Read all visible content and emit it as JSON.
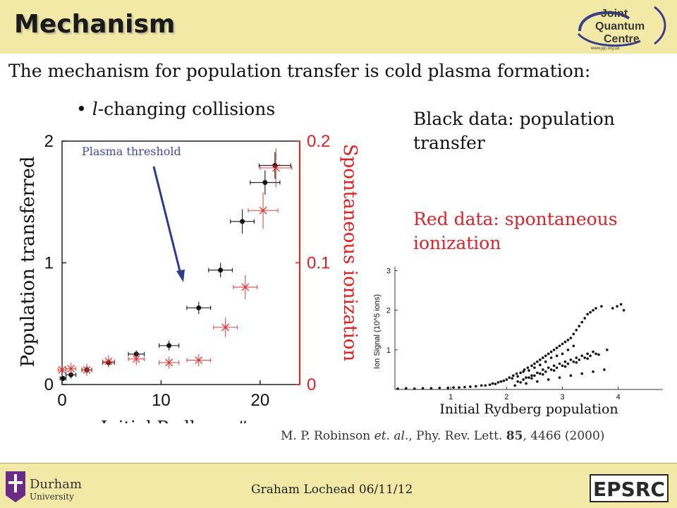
{
  "slide": {
    "title": "Mechanism",
    "intro": "The mechanism for population transfer is cold plasma formation:",
    "bullet_prefix": "l",
    "bullet_rest": "-changing collisions",
    "black_note": "Black data: population transfer",
    "red_note": "Red data: spontaneous ionization",
    "ref_pre": "M. P. Robinson ",
    "ref_etal": "et. al.",
    "ref_mid": ", Phy. Rev. Lett. ",
    "ref_vol": "85",
    "ref_post": ", 4466 (2000)",
    "footer": "Graham Lochead 06/11/12",
    "logos": {
      "jqc_line1": "Joint",
      "jqc_line2": "Quantum",
      "jqc_line3": "Centre",
      "jqc_url": "www.jqc.org.uk",
      "durham_line1": "Durham",
      "durham_line2": "University",
      "epsrc": "EPSRC"
    },
    "colors": {
      "band": "#f2e9a6",
      "black_series": "#111111",
      "red_series": "#e02020",
      "arrow": "#2e3a8c"
    }
  },
  "chart_data": [
    {
      "type": "scatter",
      "title": "",
      "xlabel": "Initial Rydberg #",
      "ylabel": "Population transferred",
      "y2label": "Spontaneous ionization",
      "xlim": [
        0,
        24
      ],
      "ylim": [
        0,
        2
      ],
      "y2lim": [
        0,
        0.2
      ],
      "xticks": [
        0,
        10,
        20
      ],
      "yticks": [
        0,
        1,
        2
      ],
      "y2ticks": [
        "0",
        "0.1",
        "0.2"
      ],
      "annotation": "Plasma threshold",
      "series": [
        {
          "axis": "left",
          "color": "#111111",
          "x": [
            0.1,
            0.9,
            2.5,
            4.7,
            7.5,
            10.8,
            13.8,
            16.0,
            18.2,
            20.5,
            21.5
          ],
          "y": [
            0.05,
            0.08,
            0.12,
            0.18,
            0.25,
            0.32,
            0.63,
            0.94,
            1.34,
            1.66,
            1.8
          ],
          "xerr": [
            0.3,
            0.5,
            0.5,
            0.6,
            0.8,
            1.0,
            1.2,
            1.2,
            1.2,
            1.5,
            1.6
          ],
          "yerr": [
            0.02,
            0.03,
            0.03,
            0.03,
            0.03,
            0.04,
            0.05,
            0.06,
            0.1,
            0.1,
            0.11
          ]
        },
        {
          "axis": "right",
          "color": "#e02020",
          "x": [
            0.0,
            0.9,
            2.5,
            4.7,
            7.5,
            10.8,
            13.8,
            16.5,
            18.5,
            20.3,
            21.6
          ],
          "y": [
            0.012,
            0.013,
            0.012,
            0.019,
            0.021,
            0.018,
            0.02,
            0.047,
            0.08,
            0.143,
            0.178
          ],
          "xerr": [
            0.4,
            0.5,
            0.5,
            0.6,
            0.8,
            1.0,
            1.2,
            1.2,
            1.2,
            1.5,
            1.6
          ],
          "yerr": [
            0.005,
            0.005,
            0.005,
            0.005,
            0.005,
            0.005,
            0.005,
            0.008,
            0.01,
            0.015,
            0.016
          ]
        }
      ]
    },
    {
      "type": "scatter",
      "title": "",
      "xlabel": "Initial Rydberg population",
      "ylabel": "Ion Signal (10^5 ions)",
      "xlim": [
        0,
        4.8
      ],
      "ylim": [
        0,
        3.1
      ],
      "xticks": [
        1,
        2,
        3,
        4
      ],
      "yticks": [
        1,
        2,
        3
      ],
      "series": [
        {
          "color": "#111111",
          "x": [
            0.05,
            0.2,
            0.35,
            0.5,
            0.65,
            0.8,
            0.95,
            1.05,
            1.15,
            1.25,
            1.35,
            1.45,
            1.55,
            1.62,
            1.7,
            1.75,
            1.8,
            1.85,
            1.9,
            1.95,
            2.0,
            2.05,
            2.1,
            2.12,
            2.18,
            2.2,
            2.25,
            2.3,
            2.32,
            2.38,
            2.4,
            2.45,
            2.5,
            2.5,
            2.55,
            2.6,
            2.6,
            2.65,
            2.7,
            2.7,
            2.75,
            2.8,
            2.8,
            2.85,
            2.9,
            2.9,
            2.95,
            3.0,
            3.0,
            3.05,
            3.1,
            3.1,
            3.15,
            3.2,
            3.2,
            3.25,
            3.3,
            3.35,
            3.4,
            3.45,
            3.5,
            3.55,
            3.6,
            3.7,
            3.9,
            4.05,
            4.1,
            2.35,
            2.45,
            2.55,
            2.65,
            2.75,
            2.85,
            2.95,
            3.05,
            3.15,
            3.25,
            3.35,
            3.45,
            3.55,
            2.2,
            2.3,
            2.4,
            2.5,
            2.6,
            2.7,
            2.8,
            2.9,
            3.0,
            3.1,
            3.2,
            3.3,
            3.4,
            3.5,
            3.6,
            3.8,
            3.98,
            2.15,
            2.35,
            2.55,
            2.75,
            2.95,
            3.15,
            3.35,
            3.55,
            3.75,
            2.25,
            2.45,
            2.65,
            2.85,
            3.05,
            3.25,
            3.45,
            3.65
          ],
          "y": [
            0.02,
            0.03,
            0.02,
            0.03,
            0.03,
            0.04,
            0.04,
            0.05,
            0.05,
            0.06,
            0.07,
            0.08,
            0.1,
            0.1,
            0.12,
            0.15,
            0.14,
            0.18,
            0.2,
            0.22,
            0.25,
            0.3,
            0.28,
            0.35,
            0.4,
            0.33,
            0.42,
            0.45,
            0.5,
            0.55,
            0.48,
            0.6,
            0.65,
            0.55,
            0.7,
            0.75,
            0.62,
            0.8,
            0.85,
            0.7,
            0.9,
            0.95,
            0.8,
            1.0,
            1.05,
            0.85,
            1.1,
            1.15,
            0.9,
            1.2,
            1.25,
            1.0,
            1.3,
            1.4,
            1.1,
            1.5,
            1.6,
            1.7,
            1.8,
            1.9,
            1.95,
            2.0,
            2.05,
            2.1,
            2.05,
            2.15,
            2.0,
            0.3,
            0.35,
            0.42,
            0.5,
            0.55,
            0.6,
            0.65,
            0.7,
            0.75,
            0.8,
            0.85,
            0.9,
            0.95,
            0.2,
            0.25,
            0.3,
            0.35,
            0.4,
            0.45,
            0.5,
            0.55,
            0.6,
            0.65,
            0.7,
            0.75,
            0.8,
            0.85,
            0.9,
            1.0,
            2.1,
            0.1,
            0.15,
            0.2,
            0.25,
            0.3,
            0.35,
            0.4,
            0.45,
            0.5,
            0.18,
            0.28,
            0.38,
            0.48,
            0.58,
            0.68,
            0.78,
            0.88
          ]
        }
      ]
    }
  ]
}
